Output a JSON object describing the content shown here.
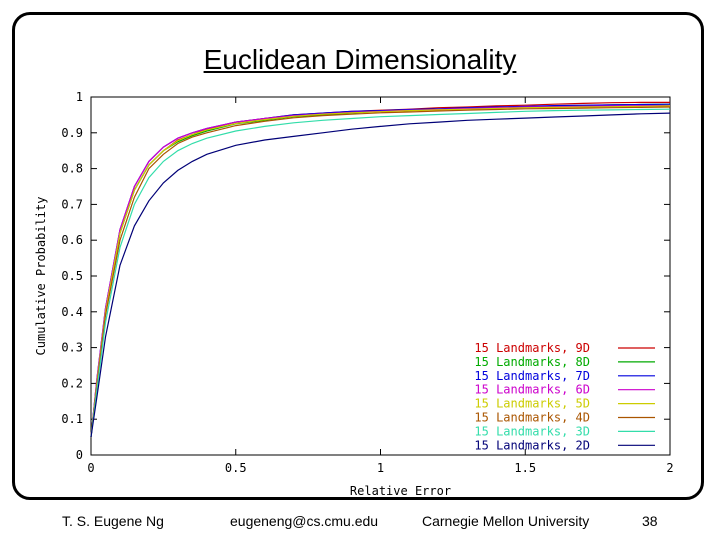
{
  "slide": {
    "title": "Euclidean Dimensionality",
    "footer": {
      "author": "T. S. Eugene Ng",
      "email": "eugeneng@cs.cmu.edu",
      "institution": "Carnegie Mellon University",
      "page_number": "38"
    }
  },
  "chart_data": {
    "type": "line",
    "title": "",
    "xlabel": "Relative Error",
    "ylabel": "Cumulative Probability",
    "xlim": [
      0,
      2
    ],
    "ylim": [
      0,
      1
    ],
    "x_ticks": [
      0,
      0.5,
      1,
      1.5,
      2
    ],
    "x_tick_labels": [
      "0",
      "0.5",
      "1",
      "1.5",
      "2"
    ],
    "y_ticks": [
      0,
      0.1,
      0.2,
      0.3,
      0.4,
      0.5,
      0.6,
      0.7,
      0.8,
      0.9,
      1
    ],
    "y_tick_labels": [
      "0",
      "0.1",
      "0.2",
      "0.3",
      "0.4",
      "0.5",
      "0.6",
      "0.7",
      "0.8",
      "0.9",
      "1"
    ],
    "legend_position": "bottom-right",
    "x": [
      0,
      0.02,
      0.05,
      0.1,
      0.15,
      0.2,
      0.25,
      0.3,
      0.35,
      0.4,
      0.5,
      0.6,
      0.7,
      0.8,
      0.9,
      1.0,
      1.1,
      1.2,
      1.3,
      1.4,
      1.5,
      1.6,
      1.7,
      1.8,
      1.9,
      2.0
    ],
    "series": [
      {
        "name": "15 Landmarks, 9D",
        "color": "#cc0000",
        "values": [
          0.05,
          0.2,
          0.4,
          0.62,
          0.74,
          0.81,
          0.85,
          0.88,
          0.895,
          0.91,
          0.93,
          0.94,
          0.95,
          0.955,
          0.96,
          0.963,
          0.966,
          0.97,
          0.972,
          0.975,
          0.977,
          0.98,
          0.982,
          0.984,
          0.985,
          0.985
        ]
      },
      {
        "name": "15 Landmarks, 8D",
        "color": "#00aa00",
        "values": [
          0.05,
          0.2,
          0.4,
          0.62,
          0.74,
          0.81,
          0.85,
          0.875,
          0.892,
          0.905,
          0.925,
          0.935,
          0.945,
          0.95,
          0.955,
          0.96,
          0.962,
          0.965,
          0.968,
          0.97,
          0.972,
          0.975,
          0.976,
          0.978,
          0.979,
          0.98
        ]
      },
      {
        "name": "15 Landmarks, 7D",
        "color": "#0000dd",
        "values": [
          0.05,
          0.21,
          0.41,
          0.63,
          0.75,
          0.82,
          0.86,
          0.885,
          0.9,
          0.912,
          0.93,
          0.94,
          0.95,
          0.955,
          0.96,
          0.962,
          0.965,
          0.967,
          0.97,
          0.972,
          0.974,
          0.976,
          0.977,
          0.978,
          0.979,
          0.98
        ]
      },
      {
        "name": "15 Landmarks, 6D",
        "color": "#cc00cc",
        "values": [
          0.05,
          0.21,
          0.41,
          0.63,
          0.75,
          0.82,
          0.86,
          0.885,
          0.9,
          0.912,
          0.93,
          0.94,
          0.948,
          0.953,
          0.957,
          0.96,
          0.963,
          0.965,
          0.968,
          0.97,
          0.972,
          0.973,
          0.974,
          0.975,
          0.976,
          0.976
        ]
      },
      {
        "name": "15 Landmarks, 5D",
        "color": "#cccc00",
        "values": [
          0.05,
          0.2,
          0.4,
          0.62,
          0.74,
          0.81,
          0.85,
          0.878,
          0.895,
          0.908,
          0.926,
          0.937,
          0.946,
          0.952,
          0.956,
          0.959,
          0.962,
          0.964,
          0.966,
          0.968,
          0.97,
          0.971,
          0.972,
          0.973,
          0.974,
          0.975
        ]
      },
      {
        "name": "15 Landmarks, 4D",
        "color": "#aa5500",
        "values": [
          0.05,
          0.19,
          0.39,
          0.6,
          0.72,
          0.8,
          0.84,
          0.87,
          0.888,
          0.9,
          0.92,
          0.932,
          0.942,
          0.948,
          0.952,
          0.956,
          0.958,
          0.961,
          0.963,
          0.965,
          0.967,
          0.968,
          0.969,
          0.97,
          0.971,
          0.972
        ]
      },
      {
        "name": "15 Landmarks, 3D",
        "color": "#33ddaa",
        "values": [
          0.05,
          0.18,
          0.37,
          0.58,
          0.7,
          0.775,
          0.82,
          0.85,
          0.87,
          0.885,
          0.905,
          0.918,
          0.928,
          0.935,
          0.94,
          0.945,
          0.948,
          0.951,
          0.954,
          0.957,
          0.96,
          0.962,
          0.963,
          0.964,
          0.965,
          0.966
        ]
      },
      {
        "name": "15 Landmarks, 2D",
        "color": "#000077",
        "values": [
          0.05,
          0.16,
          0.33,
          0.53,
          0.64,
          0.71,
          0.76,
          0.795,
          0.82,
          0.84,
          0.865,
          0.88,
          0.89,
          0.9,
          0.91,
          0.918,
          0.925,
          0.93,
          0.935,
          0.938,
          0.941,
          0.944,
          0.947,
          0.95,
          0.953,
          0.955
        ]
      }
    ]
  }
}
